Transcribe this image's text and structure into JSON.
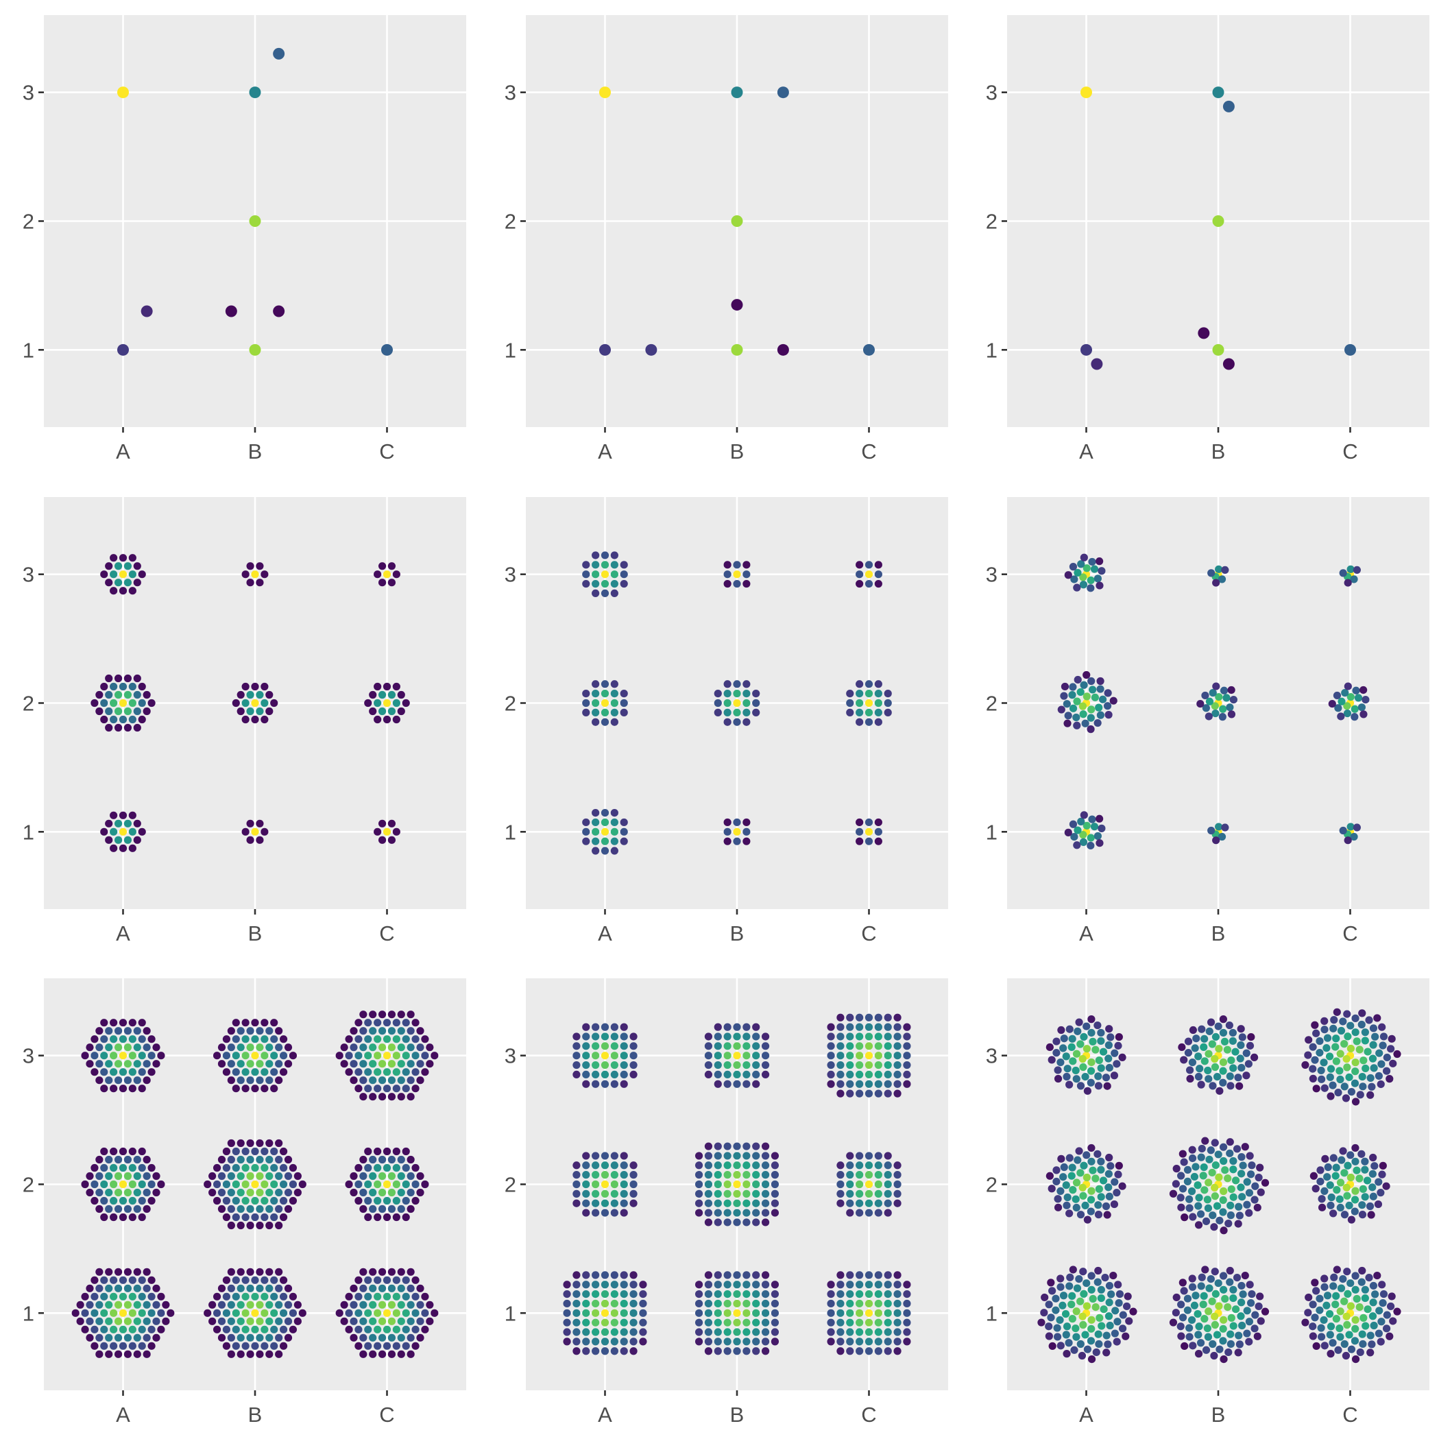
{
  "figure": {
    "description_free": true,
    "layout": "3x3 grid of small-multiple panels",
    "background": "#ffffff",
    "panel_background": "#ebebeb",
    "grid_color": "#ffffff",
    "tick_label_color": "#4d4d4d",
    "colormap": "viridis",
    "colormap_stops": [
      "#440154",
      "#46337e",
      "#365c8d",
      "#277f8e",
      "#1fa187",
      "#4ac16d",
      "#a0da39",
      "#fde725"
    ]
  },
  "chart_data": [
    {
      "type": "scatter",
      "panel": 1,
      "title": "",
      "xlabel": "",
      "ylabel": "",
      "x_categories": [
        "A",
        "B",
        "C"
      ],
      "y_ticks": [
        1,
        2,
        3
      ],
      "ylim": [
        0.4,
        3.6
      ],
      "grid": true,
      "marker": "point-large",
      "points": [
        {
          "x": "A",
          "y": 3,
          "c": 1.0
        },
        {
          "x": "A",
          "y": 1,
          "c": 0.17
        },
        {
          "x": "A",
          "y": 1.3,
          "c": 0.12,
          "dx": 0.18
        },
        {
          "x": "B",
          "y": 3,
          "c": 0.45
        },
        {
          "x": "B",
          "y": 3.3,
          "c": 0.3,
          "dx": 0.18
        },
        {
          "x": "B",
          "y": 2,
          "c": 0.85
        },
        {
          "x": "B",
          "y": 1,
          "c": 0.85
        },
        {
          "x": "B",
          "y": 1.3,
          "c": 0.02,
          "dx": -0.18
        },
        {
          "x": "B",
          "y": 1.3,
          "c": 0.02,
          "dx": 0.18
        },
        {
          "x": "C",
          "y": 1,
          "c": 0.3
        }
      ]
    },
    {
      "type": "scatter",
      "panel": 2,
      "title": "",
      "xlabel": "",
      "ylabel": "",
      "x_categories": [
        "A",
        "B",
        "C"
      ],
      "y_ticks": [
        1,
        2,
        3
      ],
      "ylim": [
        0.4,
        3.6
      ],
      "grid": true,
      "marker": "point-large",
      "points": [
        {
          "x": "A",
          "y": 3,
          "c": 1.0
        },
        {
          "x": "A",
          "y": 1,
          "c": 0.17
        },
        {
          "x": "A",
          "y": 1,
          "c": 0.17,
          "dx": 0.35
        },
        {
          "x": "B",
          "y": 3,
          "c": 0.45
        },
        {
          "x": "B",
          "y": 3,
          "c": 0.3,
          "dx": 0.35
        },
        {
          "x": "B",
          "y": 2,
          "c": 0.85
        },
        {
          "x": "B",
          "y": 1,
          "c": 0.85
        },
        {
          "x": "B",
          "y": 1.35,
          "c": 0.02
        },
        {
          "x": "B",
          "y": 1,
          "c": 0.02,
          "dx": 0.35
        },
        {
          "x": "C",
          "y": 1,
          "c": 0.3
        }
      ]
    },
    {
      "type": "scatter",
      "panel": 3,
      "title": "",
      "xlabel": "",
      "ylabel": "",
      "x_categories": [
        "A",
        "B",
        "C"
      ],
      "y_ticks": [
        1,
        2,
        3
      ],
      "ylim": [
        0.4,
        3.6
      ],
      "grid": true,
      "marker": "point-large",
      "points": [
        {
          "x": "A",
          "y": 3,
          "c": 1.0
        },
        {
          "x": "A",
          "y": 1,
          "c": 0.17
        },
        {
          "x": "A",
          "y": 0.89,
          "c": 0.12,
          "dx": 0.08
        },
        {
          "x": "B",
          "y": 3,
          "c": 0.45
        },
        {
          "x": "B",
          "y": 2.89,
          "c": 0.3,
          "dx": 0.08
        },
        {
          "x": "B",
          "y": 2,
          "c": 0.85
        },
        {
          "x": "B",
          "y": 1,
          "c": 0.85
        },
        {
          "x": "B",
          "y": 1.13,
          "c": 0.02,
          "dx": -0.11
        },
        {
          "x": "B",
          "y": 0.89,
          "c": 0.02,
          "dx": 0.08
        },
        {
          "x": "C",
          "y": 1,
          "c": 0.3
        }
      ]
    },
    {
      "type": "scatter",
      "panel": 4,
      "title": "",
      "xlabel": "",
      "ylabel": "",
      "x_categories": [
        "A",
        "B",
        "C"
      ],
      "y_ticks": [
        1,
        2,
        3
      ],
      "ylim": [
        0.4,
        3.6
      ],
      "grid": true,
      "marker": "point-small",
      "clusters": [
        {
          "x": "A",
          "y": 1,
          "rings": 2,
          "pattern": "hex"
        },
        {
          "x": "B",
          "y": 1,
          "rings": 1,
          "pattern": "hex"
        },
        {
          "x": "C",
          "y": 1,
          "rings": 1,
          "pattern": "hex"
        },
        {
          "x": "A",
          "y": 2,
          "rings": 3,
          "pattern": "hex"
        },
        {
          "x": "B",
          "y": 2,
          "rings": 2,
          "pattern": "hex"
        },
        {
          "x": "C",
          "y": 2,
          "rings": 2,
          "pattern": "hex"
        },
        {
          "x": "A",
          "y": 3,
          "rings": 2,
          "pattern": "hex"
        },
        {
          "x": "B",
          "y": 3,
          "rings": 1,
          "pattern": "hex"
        },
        {
          "x": "C",
          "y": 3,
          "rings": 1,
          "pattern": "hex"
        }
      ]
    },
    {
      "type": "scatter",
      "panel": 5,
      "title": "",
      "xlabel": "",
      "ylabel": "",
      "x_categories": [
        "A",
        "B",
        "C"
      ],
      "y_ticks": [
        1,
        2,
        3
      ],
      "ylim": [
        0.4,
        3.6
      ],
      "grid": true,
      "marker": "point-small",
      "clusters": [
        {
          "x": "A",
          "y": 1,
          "rings": 2,
          "pattern": "square"
        },
        {
          "x": "B",
          "y": 1,
          "rings": 1,
          "pattern": "square"
        },
        {
          "x": "C",
          "y": 1,
          "rings": 1,
          "pattern": "square"
        },
        {
          "x": "A",
          "y": 2,
          "rings": 2,
          "pattern": "square"
        },
        {
          "x": "B",
          "y": 2,
          "rings": 2,
          "pattern": "square"
        },
        {
          "x": "C",
          "y": 2,
          "rings": 2,
          "pattern": "square"
        },
        {
          "x": "A",
          "y": 3,
          "rings": 2,
          "pattern": "square"
        },
        {
          "x": "B",
          "y": 3,
          "rings": 1,
          "pattern": "square"
        },
        {
          "x": "C",
          "y": 3,
          "rings": 1,
          "pattern": "square"
        }
      ]
    },
    {
      "type": "scatter",
      "panel": 6,
      "title": "",
      "xlabel": "",
      "ylabel": "",
      "x_categories": [
        "A",
        "B",
        "C"
      ],
      "y_ticks": [
        1,
        2,
        3
      ],
      "ylim": [
        0.4,
        3.6
      ],
      "grid": true,
      "marker": "point-small",
      "clusters": [
        {
          "x": "A",
          "y": 1,
          "rings": 2,
          "pattern": "spiral"
        },
        {
          "x": "B",
          "y": 1,
          "rings": 1,
          "pattern": "spiral"
        },
        {
          "x": "C",
          "y": 1,
          "rings": 1,
          "pattern": "spiral"
        },
        {
          "x": "A",
          "y": 2,
          "rings": 3,
          "pattern": "spiral"
        },
        {
          "x": "B",
          "y": 2,
          "rings": 2,
          "pattern": "spiral"
        },
        {
          "x": "C",
          "y": 2,
          "rings": 2,
          "pattern": "spiral"
        },
        {
          "x": "A",
          "y": 3,
          "rings": 2,
          "pattern": "spiral"
        },
        {
          "x": "B",
          "y": 3,
          "rings": 1,
          "pattern": "spiral"
        },
        {
          "x": "C",
          "y": 3,
          "rings": 1,
          "pattern": "spiral"
        }
      ]
    },
    {
      "type": "scatter",
      "panel": 7,
      "title": "",
      "xlabel": "",
      "ylabel": "",
      "x_categories": [
        "A",
        "B",
        "C"
      ],
      "y_ticks": [
        1,
        2,
        3
      ],
      "ylim": [
        0.4,
        3.6
      ],
      "grid": true,
      "marker": "point-small",
      "clusters": [
        {
          "x": "A",
          "y": 1,
          "rings": 5,
          "pattern": "hex"
        },
        {
          "x": "B",
          "y": 1,
          "rings": 5,
          "pattern": "hex"
        },
        {
          "x": "C",
          "y": 1,
          "rings": 5,
          "pattern": "hex"
        },
        {
          "x": "A",
          "y": 2,
          "rings": 4,
          "pattern": "hex"
        },
        {
          "x": "B",
          "y": 2,
          "rings": 5,
          "pattern": "hex"
        },
        {
          "x": "C",
          "y": 2,
          "rings": 4,
          "pattern": "hex"
        },
        {
          "x": "A",
          "y": 3,
          "rings": 4,
          "pattern": "hex"
        },
        {
          "x": "B",
          "y": 3,
          "rings": 4,
          "pattern": "hex"
        },
        {
          "x": "C",
          "y": 3,
          "rings": 5,
          "pattern": "hex"
        }
      ]
    },
    {
      "type": "scatter",
      "panel": 8,
      "title": "",
      "xlabel": "",
      "ylabel": "",
      "x_categories": [
        "A",
        "B",
        "C"
      ],
      "y_ticks": [
        1,
        2,
        3
      ],
      "ylim": [
        0.4,
        3.6
      ],
      "grid": true,
      "marker": "point-small",
      "clusters": [
        {
          "x": "A",
          "y": 1,
          "rings": 4,
          "pattern": "square"
        },
        {
          "x": "B",
          "y": 1,
          "rings": 4,
          "pattern": "square"
        },
        {
          "x": "C",
          "y": 1,
          "rings": 4,
          "pattern": "square"
        },
        {
          "x": "A",
          "y": 2,
          "rings": 3,
          "pattern": "square"
        },
        {
          "x": "B",
          "y": 2,
          "rings": 4,
          "pattern": "square"
        },
        {
          "x": "C",
          "y": 2,
          "rings": 3,
          "pattern": "square"
        },
        {
          "x": "A",
          "y": 3,
          "rings": 3,
          "pattern": "square"
        },
        {
          "x": "B",
          "y": 3,
          "rings": 3,
          "pattern": "square"
        },
        {
          "x": "C",
          "y": 3,
          "rings": 4,
          "pattern": "square"
        }
      ]
    },
    {
      "type": "scatter",
      "panel": 9,
      "title": "",
      "xlabel": "",
      "ylabel": "",
      "x_categories": [
        "A",
        "B",
        "C"
      ],
      "y_ticks": [
        1,
        2,
        3
      ],
      "ylim": [
        0.4,
        3.6
      ],
      "grid": true,
      "marker": "point-small",
      "clusters": [
        {
          "x": "A",
          "y": 1,
          "rings": 5,
          "pattern": "spiral"
        },
        {
          "x": "B",
          "y": 1,
          "rings": 5,
          "pattern": "spiral"
        },
        {
          "x": "C",
          "y": 1,
          "rings": 5,
          "pattern": "spiral"
        },
        {
          "x": "A",
          "y": 2,
          "rings": 4,
          "pattern": "spiral"
        },
        {
          "x": "B",
          "y": 2,
          "rings": 5,
          "pattern": "spiral"
        },
        {
          "x": "C",
          "y": 2,
          "rings": 4,
          "pattern": "spiral"
        },
        {
          "x": "A",
          "y": 3,
          "rings": 4,
          "pattern": "spiral"
        },
        {
          "x": "B",
          "y": 3,
          "rings": 4,
          "pattern": "spiral"
        },
        {
          "x": "C",
          "y": 3,
          "rings": 5,
          "pattern": "spiral"
        }
      ]
    }
  ]
}
